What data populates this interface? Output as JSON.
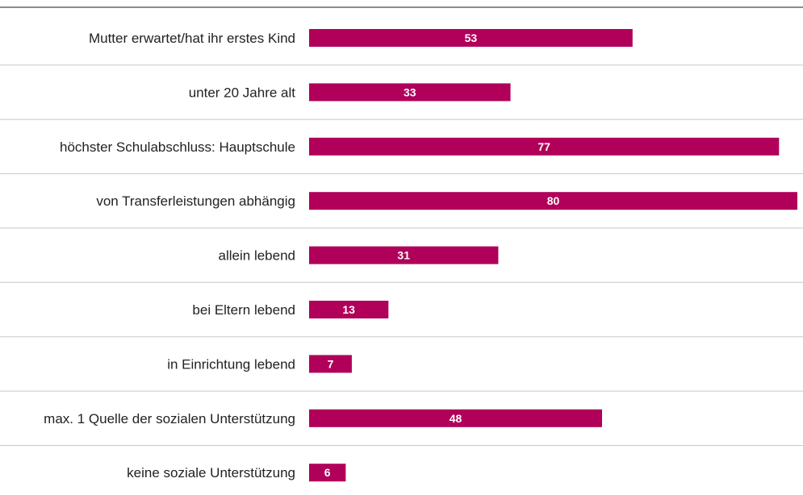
{
  "chart_data": {
    "type": "bar",
    "orientation": "horizontal",
    "title": "",
    "categories": [
      "Mutter erwartet/hat ihr erstes Kind",
      "unter 20 Jahre alt",
      "höchster Schulabschluss: Hauptschule",
      "von Transferleistungen abhängig",
      "allein lebend",
      "bei Eltern lebend",
      "in Einrichtung lebend",
      "max. 1 Quelle der sozialen Unterstützung",
      "keine soziale Unterstützung"
    ],
    "values": [
      53,
      33,
      77,
      80,
      31,
      13,
      7,
      48,
      6
    ],
    "xlim": [
      0,
      80
    ],
    "bar_color": "#b0005a",
    "label_color": "#ffffff",
    "separator_color": "#c8c8c8",
    "grid": false
  }
}
